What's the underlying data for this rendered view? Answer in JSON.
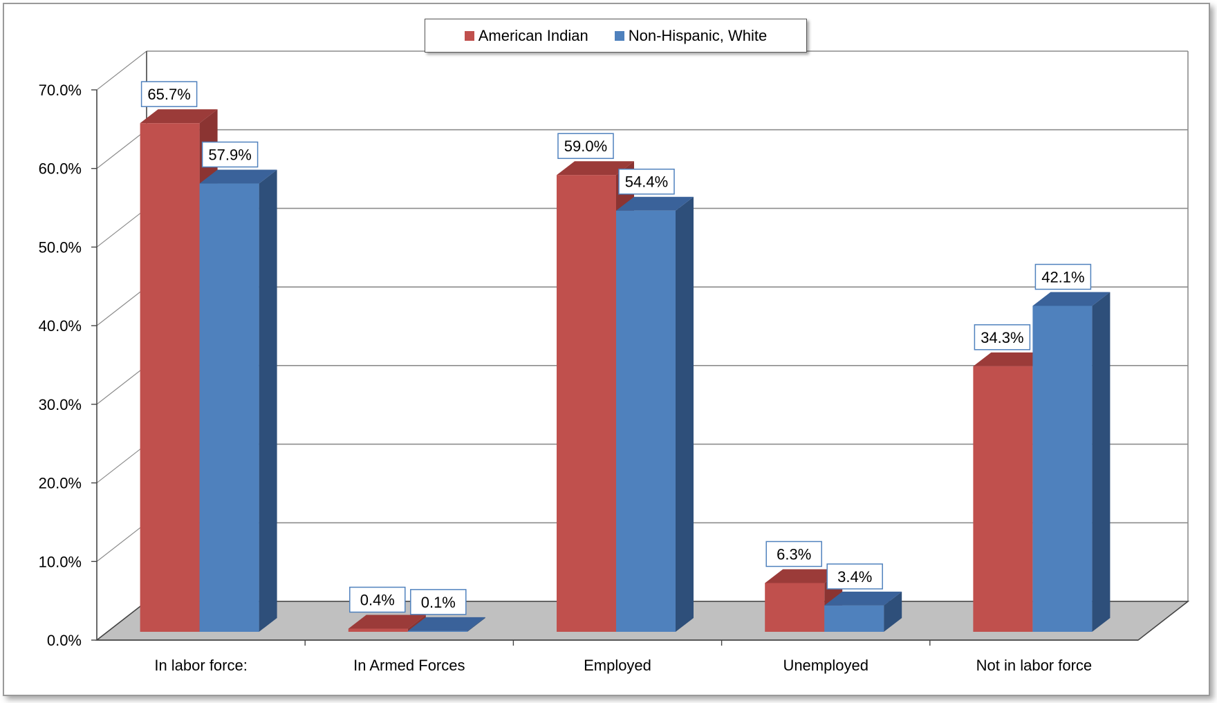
{
  "chart_data": {
    "type": "bar",
    "title": "",
    "xlabel": "",
    "ylabel": "",
    "categories": [
      "In labor force:",
      "In Armed Forces",
      "Employed",
      "Unemployed",
      "Not in labor force"
    ],
    "series": [
      {
        "name": "American Indian",
        "color": "#C0504D",
        "values": [
          65.7,
          0.4,
          59.0,
          6.3,
          34.3
        ],
        "labels": [
          "65.7%",
          "0.4%",
          "59.0%",
          "6.3%",
          "34.3%"
        ]
      },
      {
        "name": "Non-Hispanic, White",
        "color": "#4F81BD",
        "values": [
          57.9,
          0.1,
          54.4,
          3.4,
          42.1
        ],
        "labels": [
          "57.9%",
          "0.1%",
          "54.4%",
          "3.4%",
          "42.1%"
        ]
      }
    ],
    "ylim": [
      0,
      70
    ],
    "yticks": [
      "0.0%",
      "10.0%",
      "20.0%",
      "30.0%",
      "40.0%",
      "50.0%",
      "60.0%",
      "70.0%"
    ],
    "grid": true,
    "legend_position": "top-center",
    "style": "3d-clustered-column"
  }
}
